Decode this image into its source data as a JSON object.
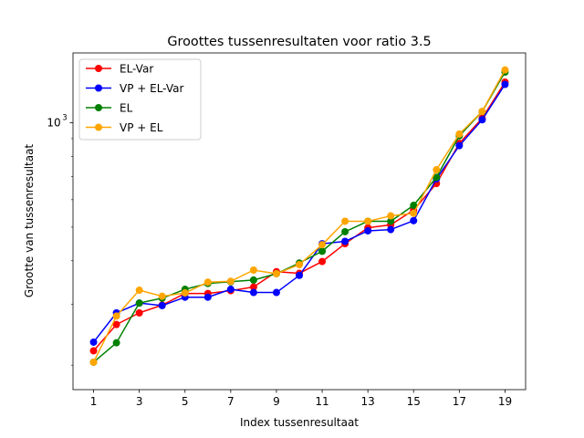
{
  "chart_data": {
    "type": "line",
    "title": "Groottes tussenresultaten voor ratio 3.5",
    "xlabel": "Index tussenresultaat",
    "ylabel": "Grootte van tussenresultaat",
    "x": [
      1,
      2,
      3,
      4,
      5,
      6,
      7,
      8,
      9,
      10,
      11,
      12,
      13,
      14,
      15,
      16,
      17,
      18,
      19
    ],
    "x_ticks": [
      1,
      3,
      5,
      7,
      9,
      11,
      13,
      15,
      17,
      19
    ],
    "xlim": [
      0.1,
      19.9
    ],
    "y_scale": "log",
    "ylim": [
      170,
      1590
    ],
    "y_ticks": [
      {
        "value": 1000,
        "label": "10",
        "exponent": "3"
      }
    ],
    "grid": false,
    "legend_position": "top-left",
    "series": [
      {
        "name": "EL-Var",
        "color": "#ff0000",
        "values": [
          220,
          262,
          283,
          298,
          322,
          322,
          328,
          336,
          372,
          368,
          398,
          448,
          498,
          508,
          560,
          668,
          872,
          1030,
          1310
        ]
      },
      {
        "name": "VP + EL-Var",
        "color": "#0000ff",
        "values": [
          233,
          283,
          302,
          297,
          314,
          314,
          331,
          324,
          324,
          363,
          448,
          455,
          488,
          492,
          522,
          689,
          859,
          1020,
          1290
        ]
      },
      {
        "name": "EL",
        "color": "#008000",
        "values": [
          204,
          232,
          302,
          312,
          331,
          344,
          348,
          352,
          367,
          394,
          426,
          485,
          520,
          520,
          578,
          696,
          917,
          1077,
          1400
        ]
      },
      {
        "name": "VP + EL",
        "color": "#ffa500",
        "values": [
          204,
          277,
          329,
          316,
          323,
          347,
          349,
          376,
          367,
          390,
          445,
          520,
          520,
          539,
          548,
          732,
          928,
          1078,
          1420
        ]
      }
    ]
  }
}
